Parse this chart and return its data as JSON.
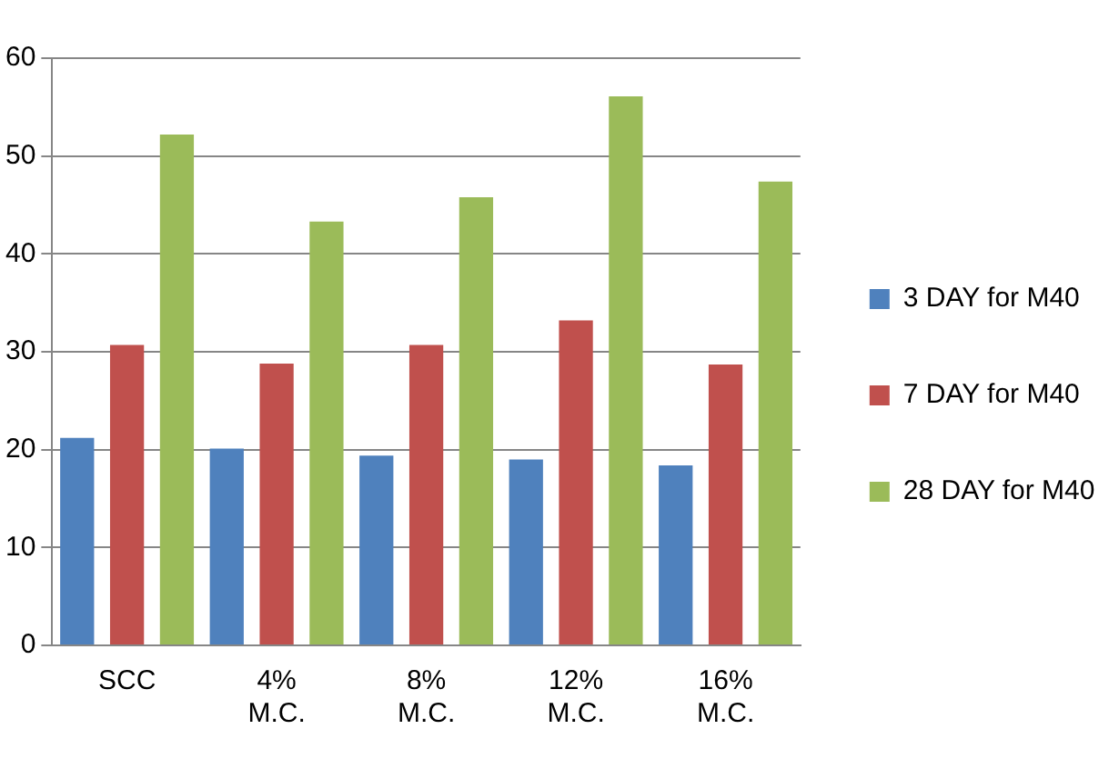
{
  "chart_data": {
    "type": "bar",
    "categories": [
      "SCC",
      "4% M.C.",
      "8% M.C.",
      "12% M.C.",
      "16% M.C."
    ],
    "series": [
      {
        "name": "3 DAY for M40",
        "color": "#4f81bd",
        "values": [
          21.2,
          20.1,
          19.4,
          19.0,
          18.4
        ]
      },
      {
        "name": "7 DAY for M40",
        "color": "#c0504d",
        "values": [
          30.7,
          28.8,
          30.7,
          33.2,
          28.7
        ]
      },
      {
        "name": "28 DAY for M40",
        "color": "#9bbb59",
        "values": [
          52.2,
          43.3,
          45.8,
          56.1,
          47.4
        ]
      }
    ],
    "ylim": [
      0,
      60
    ],
    "yticks": [
      0,
      10,
      20,
      30,
      40,
      50,
      60
    ],
    "grid": "y",
    "legend": "right"
  }
}
